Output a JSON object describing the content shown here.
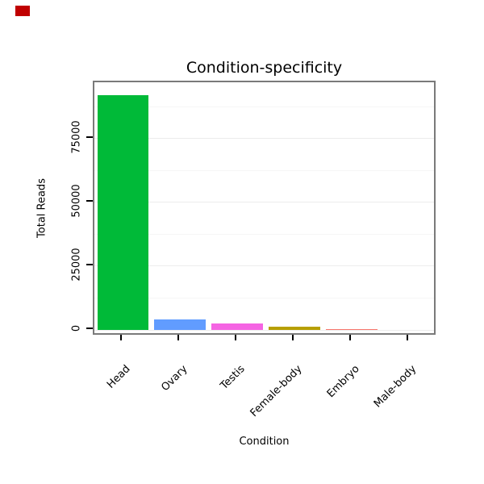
{
  "chart_data": {
    "type": "bar",
    "title": "Condition-specificity",
    "xlabel": "Condition",
    "ylabel": "Total Reads",
    "categories": [
      "Head",
      "Ovary",
      "Testis",
      "Female-body",
      "Embryo",
      "Male-body"
    ],
    "values": [
      92000,
      4200,
      2700,
      1400,
      400,
      0
    ],
    "colors": [
      "#00BA38",
      "#619CFF",
      "#F564E3",
      "#B79F00",
      "#F8766D",
      "#00BFC4"
    ],
    "ylim": [
      -2500,
      97000
    ],
    "yticks": [
      0,
      25000,
      50000,
      75000
    ],
    "grid": "horizontal",
    "legend": "none"
  },
  "decorations": {
    "red_marker_color": "#C00000"
  }
}
